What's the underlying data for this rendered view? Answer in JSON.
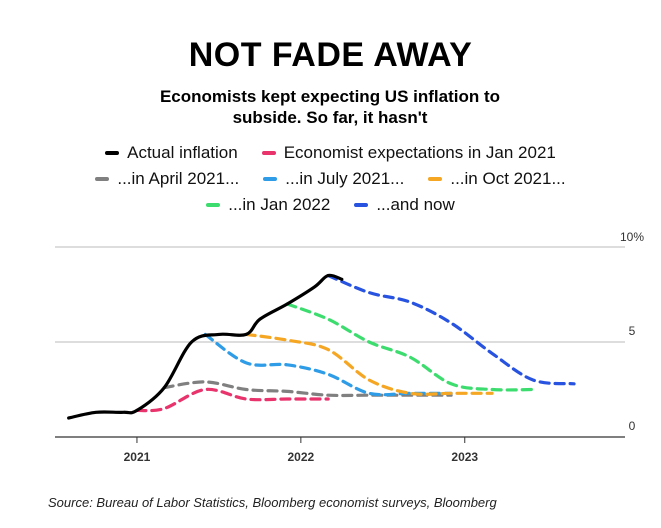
{
  "title": "NOT FADE AWAY",
  "subtitle": "Economists kept expecting US inflation to subside. So far, it hasn't",
  "source": "Source: Bureau of Labor Statistics, Bloomberg economist surveys, Bloomberg",
  "chart_data": {
    "type": "line",
    "title": "NOT FADE AWAY",
    "subtitle": "Economists kept expecting US inflation to subside. So far, it hasn't",
    "xlabel": "",
    "ylabel": "",
    "x_ticks": [
      "2021",
      "2022",
      "2023"
    ],
    "y_ticks": [
      {
        "value": 0,
        "label": "0"
      },
      {
        "value": 5,
        "label": "5"
      },
      {
        "value": 10,
        "label": "10%"
      }
    ],
    "xlim": [
      "2020-07",
      "2023-12"
    ],
    "ylim": [
      0,
      10
    ],
    "grid": "horizontal",
    "legend_placement": "top",
    "series": [
      {
        "name": "Actual inflation",
        "color": "#000000",
        "dash": "solid",
        "points": [
          [
            "2020-08",
            1.0
          ],
          [
            "2020-10",
            1.3
          ],
          [
            "2020-12",
            1.3
          ],
          [
            "2021-01",
            1.4
          ],
          [
            "2021-03",
            2.6
          ],
          [
            "2021-05",
            5.0
          ],
          [
            "2021-07",
            5.4
          ],
          [
            "2021-09",
            5.4
          ],
          [
            "2021-10",
            6.2
          ],
          [
            "2021-12",
            7.0
          ],
          [
            "2022-02",
            7.9
          ],
          [
            "2022-03",
            8.5
          ],
          [
            "2022-04",
            8.3
          ]
        ]
      },
      {
        "name": "Economist expectations in Jan 2021",
        "color": "#e8336c",
        "dash": "dashed",
        "points": [
          [
            "2021-01",
            1.4
          ],
          [
            "2021-03",
            1.5
          ],
          [
            "2021-06",
            2.5
          ],
          [
            "2021-09",
            2.0
          ],
          [
            "2021-12",
            2.0
          ],
          [
            "2022-03",
            2.0
          ]
        ]
      },
      {
        "name": "...in April 2021...",
        "color": "#808080",
        "dash": "dashed",
        "points": [
          [
            "2021-03",
            2.6
          ],
          [
            "2021-06",
            2.9
          ],
          [
            "2021-09",
            2.5
          ],
          [
            "2021-12",
            2.4
          ],
          [
            "2022-03",
            2.2
          ],
          [
            "2022-06",
            2.2
          ],
          [
            "2022-09",
            2.2
          ],
          [
            "2022-12",
            2.2
          ]
        ]
      },
      {
        "name": "...in July 2021...",
        "color": "#2e9ce6",
        "dash": "dashed",
        "points": [
          [
            "2021-06",
            5.4
          ],
          [
            "2021-09",
            3.9
          ],
          [
            "2021-12",
            3.8
          ],
          [
            "2022-03",
            3.3
          ],
          [
            "2022-06",
            2.3
          ],
          [
            "2022-09",
            2.3
          ],
          [
            "2022-12",
            2.3
          ]
        ]
      },
      {
        "name": "...in Oct 2021...",
        "color": "#f5a623",
        "dash": "dashed",
        "points": [
          [
            "2021-09",
            5.4
          ],
          [
            "2021-12",
            5.1
          ],
          [
            "2022-03",
            4.6
          ],
          [
            "2022-06",
            3.0
          ],
          [
            "2022-09",
            2.3
          ],
          [
            "2022-12",
            2.3
          ],
          [
            "2023-03",
            2.3
          ]
        ]
      },
      {
        "name": "...in Jan 2022",
        "color": "#3ddc6f",
        "dash": "dashed",
        "points": [
          [
            "2021-12",
            7.0
          ],
          [
            "2022-03",
            6.2
          ],
          [
            "2022-06",
            5.0
          ],
          [
            "2022-09",
            4.2
          ],
          [
            "2022-12",
            2.8
          ],
          [
            "2023-03",
            2.5
          ],
          [
            "2023-06",
            2.5
          ]
        ]
      },
      {
        "name": "...and now",
        "color": "#2753e0",
        "dash": "dashed",
        "points": [
          [
            "2022-03",
            8.5
          ],
          [
            "2022-06",
            7.6
          ],
          [
            "2022-09",
            7.1
          ],
          [
            "2022-12",
            6.0
          ],
          [
            "2023-03",
            4.4
          ],
          [
            "2023-06",
            3.0
          ],
          [
            "2023-09",
            2.8
          ]
        ]
      }
    ]
  }
}
